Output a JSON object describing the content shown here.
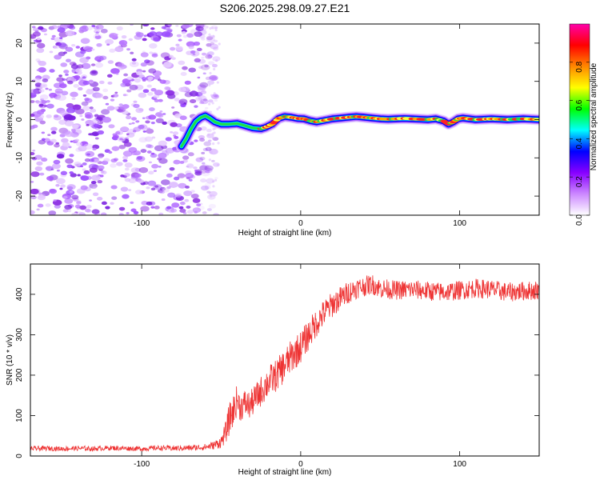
{
  "page_title": "S206.2025.298.09.27.E21",
  "chart_data": [
    {
      "type": "heatmap",
      "title": "S206.2025.298.09.27.E21",
      "xlabel": "Height of straight line (km)",
      "ylabel": "Frequency (Hz)",
      "xlim": [
        -170,
        150
      ],
      "ylim": [
        -25,
        25
      ],
      "xticks": [
        -100,
        0,
        100
      ],
      "yticks": [
        -20,
        -10,
        0,
        10,
        20
      ],
      "xtick_labels": [
        "-100",
        "0",
        "100"
      ],
      "ytick_labels": [
        "-20",
        "-10",
        "0",
        "10",
        "20"
      ],
      "noise_region_x": [
        -170,
        -57
      ],
      "signal_track": {
        "x": [
          -75,
          -72,
          -69,
          -66,
          -63,
          -60,
          -57,
          -54,
          -50,
          -45,
          -40,
          -35,
          -30,
          -25,
          -22,
          -18,
          -14,
          -10,
          -6,
          -2,
          2,
          6,
          10,
          15,
          20,
          25,
          30,
          35,
          40,
          45,
          50,
          55,
          60,
          65,
          70,
          75,
          80,
          85,
          90,
          93,
          96,
          99,
          102,
          106,
          110,
          115,
          120,
          125,
          130,
          135,
          140,
          145,
          150
        ],
        "frequency": [
          -7,
          -5,
          -2.5,
          -0.5,
          0.5,
          1,
          0.3,
          -0.6,
          -1.2,
          -1.2,
          -1.0,
          -1.6,
          -2.2,
          -2.4,
          -2.0,
          -1.2,
          0.3,
          0.8,
          0.6,
          0.3,
          0.2,
          -0.3,
          -0.6,
          -0.2,
          0.2,
          0.4,
          0.6,
          0.8,
          0.6,
          0.4,
          0.2,
          0.1,
          0.2,
          0.3,
          0.2,
          0.1,
          0.0,
          0.2,
          -0.4,
          -1.2,
          -0.6,
          0.2,
          0.4,
          0.2,
          0.0,
          0.1,
          0.2,
          0.1,
          0.0,
          0.1,
          0.2,
          0.1,
          0.0
        ]
      },
      "colorbar": {
        "label": "Normalized spectral amplitude",
        "range": [
          0,
          1
        ],
        "ticks": [
          0.0,
          0.2,
          0.4,
          0.6,
          0.8
        ],
        "tick_labels": [
          "0.0",
          "0.2",
          "0.4",
          "0.6",
          "0.8"
        ],
        "colors": [
          "#ffffff",
          "#cc88ff",
          "#8800ff",
          "#0000ff",
          "#00ffff",
          "#00ff00",
          "#ffff00",
          "#ff8800",
          "#ff0000",
          "#ff00aa"
        ]
      }
    },
    {
      "type": "line",
      "xlabel": "Height of straight line (km)",
      "ylabel": "SNR (10 * v/v)",
      "xlim": [
        -170,
        150
      ],
      "ylim": [
        0,
        475
      ],
      "xticks": [
        -100,
        0,
        100
      ],
      "yticks": [
        0,
        100,
        200,
        300,
        400
      ],
      "xtick_labels": [
        "-100",
        "0",
        "100"
      ],
      "ytick_labels": [
        "0",
        "100",
        "200",
        "300",
        "400"
      ],
      "color": "#ee3333",
      "series": [
        {
          "name": "SNR",
          "x": [
            -170,
            -160,
            -150,
            -140,
            -130,
            -120,
            -110,
            -100,
            -90,
            -80,
            -70,
            -60,
            -55,
            -50,
            -47,
            -45,
            -42,
            -40,
            -38,
            -35,
            -32,
            -30,
            -25,
            -20,
            -15,
            -10,
            -5,
            0,
            5,
            10,
            15,
            20,
            25,
            30,
            35,
            40,
            45,
            50,
            60,
            70,
            80,
            90,
            100,
            110,
            120,
            130,
            140,
            150
          ],
          "values": [
            18,
            19,
            18,
            19,
            18,
            20,
            19,
            18,
            20,
            19,
            20,
            22,
            26,
            35,
            60,
            90,
            115,
            140,
            120,
            130,
            125,
            135,
            160,
            185,
            200,
            225,
            250,
            270,
            300,
            330,
            355,
            375,
            390,
            405,
            415,
            420,
            425,
            415,
            410,
            412,
            408,
            405,
            410,
            415,
            412,
            405,
            408,
            410
          ],
          "noise_amplitude": [
            6,
            6,
            6,
            6,
            6,
            6,
            6,
            6,
            6,
            7,
            7,
            8,
            10,
            15,
            28,
            40,
            40,
            38,
            35,
            35,
            35,
            35,
            38,
            40,
            40,
            42,
            42,
            40,
            38,
            36,
            34,
            32,
            30,
            28,
            26,
            25,
            25,
            25,
            24,
            24,
            24,
            24,
            24,
            24,
            24,
            24,
            24,
            24
          ]
        }
      ]
    }
  ]
}
